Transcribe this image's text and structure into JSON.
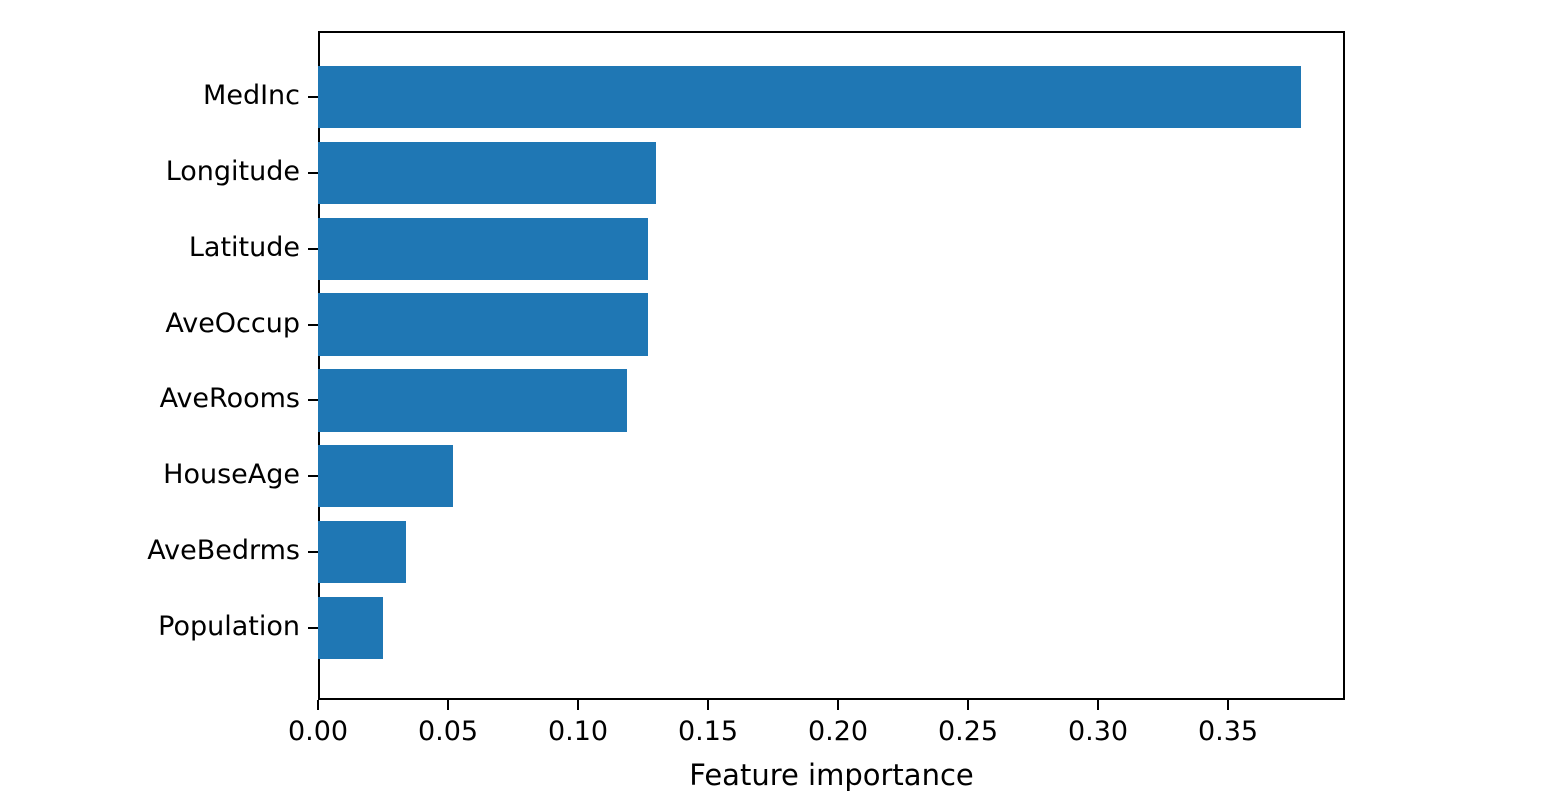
{
  "chart_data": {
    "type": "bar",
    "orientation": "horizontal",
    "title": "",
    "xlabel": "Feature importance",
    "ylabel": "",
    "categories": [
      "MedInc",
      "Longitude",
      "Latitude",
      "AveOccup",
      "AveRooms",
      "HouseAge",
      "AveBedrms",
      "Population"
    ],
    "values": [
      0.378,
      0.13,
      0.127,
      0.127,
      0.119,
      0.052,
      0.034,
      0.025
    ],
    "xlim": [
      0,
      0.395
    ],
    "xticks": [
      0.0,
      0.05,
      0.1,
      0.15,
      0.2,
      0.25,
      0.3,
      0.35
    ],
    "xtick_labels": [
      "0.00",
      "0.05",
      "0.10",
      "0.15",
      "0.20",
      "0.25",
      "0.30",
      "0.35"
    ],
    "bar_color": "#1f77b4",
    "grid": false,
    "legend": null,
    "background_color": "#ffffff",
    "spine_color": "#000000"
  }
}
